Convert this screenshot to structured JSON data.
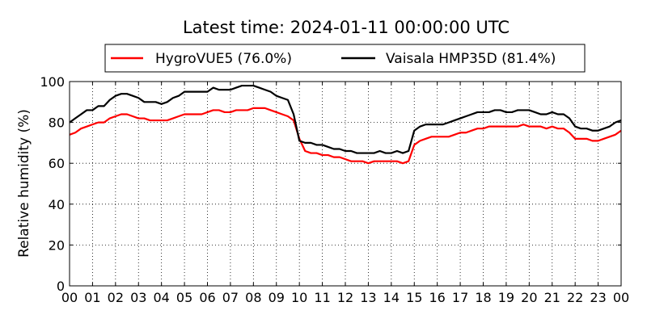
{
  "chart_data": {
    "type": "line",
    "title": "Latest time: 2024-01-11 00:00:00 UTC",
    "xlabel": "",
    "ylabel": "Relative humidity (%)",
    "xlim": [
      0,
      24
    ],
    "ylim": [
      0,
      100
    ],
    "x_ticks": [
      "00",
      "01",
      "02",
      "03",
      "04",
      "05",
      "06",
      "07",
      "08",
      "09",
      "10",
      "11",
      "12",
      "13",
      "14",
      "15",
      "16",
      "17",
      "18",
      "19",
      "20",
      "21",
      "22",
      "23",
      "00"
    ],
    "y_ticks": [
      0,
      20,
      40,
      60,
      80,
      100
    ],
    "grid": true,
    "legend_position": "top",
    "series": [
      {
        "name": "HygroVUE5 (76.0%)",
        "color": "#ff0000",
        "x": [
          0,
          0.25,
          0.5,
          0.75,
          1,
          1.25,
          1.5,
          1.75,
          2,
          2.25,
          2.5,
          2.75,
          3,
          3.25,
          3.5,
          3.75,
          4,
          4.25,
          4.5,
          4.75,
          5,
          5.25,
          5.5,
          5.75,
          6,
          6.25,
          6.5,
          6.75,
          7,
          7.25,
          7.5,
          7.75,
          8,
          8.25,
          8.5,
          8.75,
          9,
          9.25,
          9.5,
          9.75,
          10,
          10.25,
          10.5,
          10.75,
          11,
          11.25,
          11.5,
          11.75,
          12,
          12.25,
          12.5,
          12.75,
          13,
          13.25,
          13.5,
          13.75,
          14,
          14.25,
          14.5,
          14.75,
          15,
          15.25,
          15.5,
          15.75,
          16,
          16.25,
          16.5,
          16.75,
          17,
          17.25,
          17.5,
          17.75,
          18,
          18.25,
          18.5,
          18.75,
          19,
          19.25,
          19.5,
          19.75,
          20,
          20.25,
          20.5,
          20.75,
          21,
          21.25,
          21.5,
          21.75,
          22,
          22.25,
          22.5,
          22.75,
          23,
          23.25,
          23.5,
          23.75,
          24
        ],
        "values": [
          74,
          75,
          77,
          78,
          79,
          80,
          80,
          82,
          83,
          84,
          84,
          83,
          82,
          82,
          81,
          81,
          81,
          81,
          82,
          83,
          84,
          84,
          84,
          84,
          85,
          86,
          86,
          85,
          85,
          86,
          86,
          86,
          87,
          87,
          87,
          86,
          85,
          84,
          83,
          81,
          72,
          66,
          65,
          65,
          64,
          64,
          63,
          63,
          62,
          61,
          61,
          61,
          60,
          61,
          61,
          61,
          61,
          61,
          60,
          61,
          69,
          71,
          72,
          73,
          73,
          73,
          73,
          74,
          75,
          75,
          76,
          77,
          77,
          78,
          78,
          78,
          78,
          78,
          78,
          79,
          78,
          78,
          78,
          77,
          78,
          77,
          77,
          75,
          72,
          72,
          72,
          71,
          71,
          72,
          73,
          74,
          76
        ]
      },
      {
        "name": "Vaisala HMP35D (81.4%)",
        "color": "#000000",
        "x": [
          0,
          0.25,
          0.5,
          0.75,
          1,
          1.25,
          1.5,
          1.75,
          2,
          2.25,
          2.5,
          2.75,
          3,
          3.25,
          3.5,
          3.75,
          4,
          4.25,
          4.5,
          4.75,
          5,
          5.25,
          5.5,
          5.75,
          6,
          6.25,
          6.5,
          6.75,
          7,
          7.25,
          7.5,
          7.75,
          8,
          8.25,
          8.5,
          8.75,
          9,
          9.25,
          9.5,
          9.75,
          10,
          10.25,
          10.5,
          10.75,
          11,
          11.25,
          11.5,
          11.75,
          12,
          12.25,
          12.5,
          12.75,
          13,
          13.25,
          13.5,
          13.75,
          14,
          14.25,
          14.5,
          14.75,
          15,
          15.25,
          15.5,
          15.75,
          16,
          16.25,
          16.5,
          16.75,
          17,
          17.25,
          17.5,
          17.75,
          18,
          18.25,
          18.5,
          18.75,
          19,
          19.25,
          19.5,
          19.75,
          20,
          20.25,
          20.5,
          20.75,
          21,
          21.25,
          21.5,
          21.75,
          22,
          22.25,
          22.5,
          22.75,
          23,
          23.25,
          23.5,
          23.75,
          24
        ],
        "values": [
          80,
          82,
          84,
          86,
          86,
          88,
          88,
          91,
          93,
          94,
          94,
          93,
          92,
          90,
          90,
          90,
          89,
          90,
          92,
          93,
          95,
          95,
          95,
          95,
          95,
          97,
          96,
          96,
          96,
          97,
          98,
          98,
          98,
          97,
          96,
          95,
          93,
          92,
          91,
          84,
          71,
          70,
          70,
          69,
          69,
          68,
          67,
          67,
          66,
          66,
          65,
          65,
          65,
          65,
          66,
          65,
          65,
          66,
          65,
          66,
          76,
          78,
          79,
          79,
          79,
          79,
          80,
          81,
          82,
          83,
          84,
          85,
          85,
          85,
          86,
          86,
          85,
          85,
          86,
          86,
          86,
          85,
          84,
          84,
          85,
          84,
          84,
          82,
          78,
          77,
          77,
          76,
          76,
          77,
          78,
          80,
          81
        ]
      }
    ]
  }
}
